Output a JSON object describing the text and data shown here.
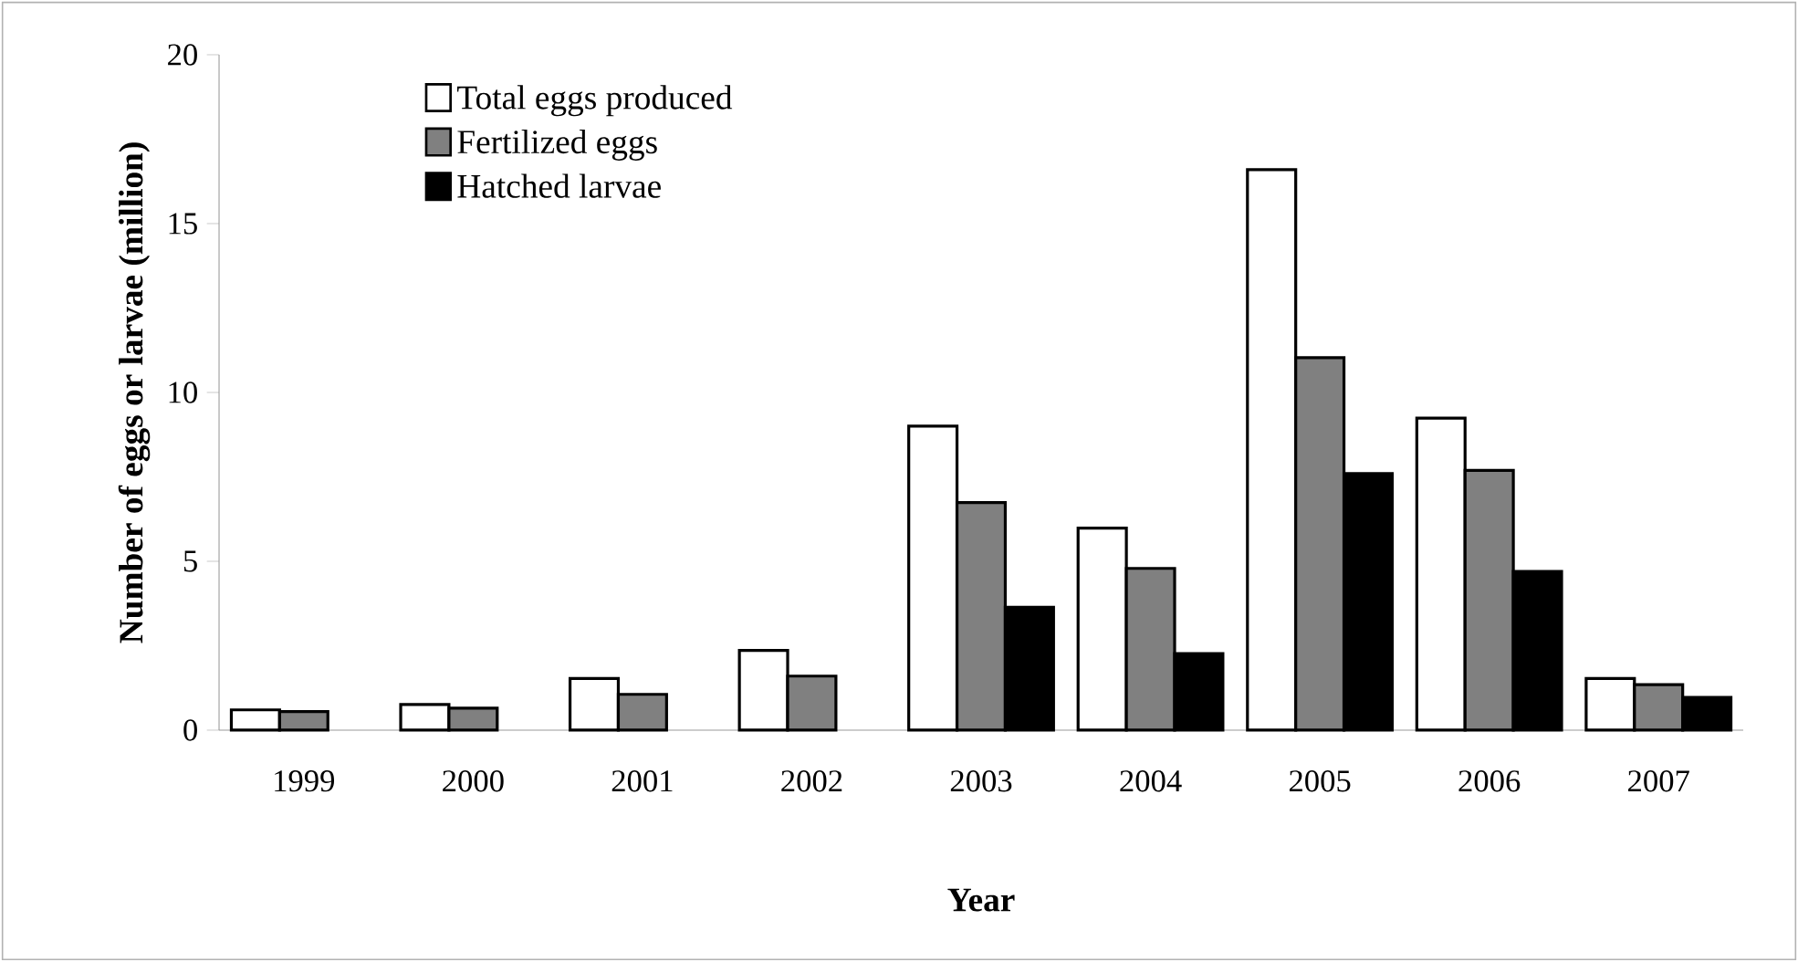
{
  "chart_data": {
    "type": "bar",
    "xlabel": "Year",
    "ylabel": "Number of eggs or larvae (million)",
    "categories": [
      "1999",
      "2000",
      "2001",
      "2002",
      "2003",
      "2004",
      "2005",
      "2006",
      "2007"
    ],
    "series": [
      {
        "name": "Total eggs produced",
        "color": "#ffffff",
        "values": [
          0.6,
          0.76,
          1.53,
          2.36,
          9.0,
          5.98,
          16.6,
          9.24,
          1.53
        ]
      },
      {
        "name": "Fertilized eggs",
        "color": "#808080",
        "values": [
          0.55,
          0.65,
          1.06,
          1.6,
          6.74,
          4.79,
          11.03,
          7.69,
          1.35
        ]
      },
      {
        "name": "Hatched larvae",
        "color": "#000000",
        "values": [
          null,
          null,
          null,
          null,
          3.64,
          2.27,
          7.6,
          4.7,
          0.97
        ]
      }
    ],
    "ylim": [
      0,
      20
    ],
    "yticks": [
      0,
      5,
      10,
      15,
      20
    ],
    "legend": "top left"
  }
}
